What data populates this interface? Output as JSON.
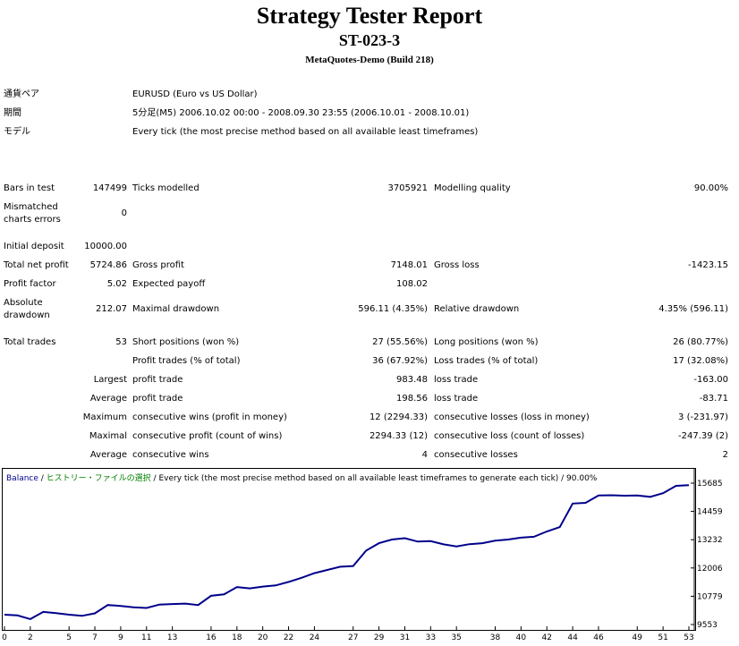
{
  "header": {
    "title": "Strategy Tester Report",
    "subtitle": "ST-023-3",
    "server": "MetaQuotes-Demo (Build 218)"
  },
  "info": {
    "pair_label": "通貨ペア",
    "pair_value": "EURUSD (Euro vs US Dollar)",
    "period_label": "期間",
    "period_value": "5分足(M5) 2006.10.02 00:00 - 2008.09.30 23:55 (2006.10.01 - 2008.10.01)",
    "model_label": "モデル",
    "model_value": "Every tick (the most precise method based on all available least timeframes)"
  },
  "stats": {
    "bars_label": "Bars in test",
    "bars_value": "147499",
    "ticks_label": "Ticks modelled",
    "ticks_value": "3705921",
    "quality_label": "Modelling quality",
    "quality_value": "90.00%",
    "mismatch_label_1": "Mismatched",
    "mismatch_label_2": "charts errors",
    "mismatch_value": "0",
    "deposit_label": "Initial deposit",
    "deposit_value": "10000.00",
    "netprofit_label": "Total net profit",
    "netprofit_value": "5724.86",
    "grossprofit_label": "Gross profit",
    "grossprofit_value": "7148.01",
    "grossloss_label": "Gross loss",
    "grossloss_value": "-1423.15",
    "pf_label": "Profit factor",
    "pf_value": "5.02",
    "ep_label": "Expected payoff",
    "ep_value": "108.02",
    "absdd_label_1": "Absolute",
    "absdd_label_2": "drawdown",
    "absdd_value": "212.07",
    "maxdd_label": "Maximal drawdown",
    "maxdd_value": "596.11 (4.35%)",
    "reldd_label": "Relative drawdown",
    "reldd_value": "4.35% (596.11)",
    "trades_label": "Total trades",
    "trades_value": "53",
    "short_label": "Short positions (won %)",
    "short_value": "27 (55.56%)",
    "long_label": "Long positions (won %)",
    "long_value": "26 (80.77%)",
    "profit_trades_label": "Profit trades (% of total)",
    "profit_trades_value": "36 (67.92%)",
    "loss_trades_label": "Loss trades (% of total)",
    "loss_trades_value": "17 (32.08%)",
    "largest_label": "Largest",
    "largest_profit_label": "profit trade",
    "largest_profit_value": "983.48",
    "largest_loss_label": "loss trade",
    "largest_loss_value": "-163.00",
    "average_label": "Average",
    "average_profit_label": "profit trade",
    "average_profit_value": "198.56",
    "average_loss_label": "loss trade",
    "average_loss_value": "-83.71",
    "maximum_label": "Maximum",
    "max_wins_label": "consecutive wins (profit in money)",
    "max_wins_value": "12 (2294.33)",
    "max_losses_label": "consecutive losses (loss in money)",
    "max_losses_value": "3 (-231.97)",
    "maximal_label": "Maximal",
    "maximal_profit_label": "consecutive profit (count of wins)",
    "maximal_profit_value": "2294.33 (12)",
    "maximal_loss_label": "consecutive loss (count of losses)",
    "maximal_loss_value": "-247.39 (2)",
    "average2_label": "Average",
    "avg_wins_label": "consecutive wins",
    "avg_wins_value": "4",
    "avg_losses_label": "consecutive losses",
    "avg_losses_value": "2"
  },
  "chart_header": {
    "balance": "Balance",
    "sep1": " / ",
    "history": "ヒストリー・ファイルの選択",
    "rest": " / Every tick (the most precise method based on all available least timeframes to generate each tick) / 90.00%"
  },
  "chart_data": {
    "type": "line",
    "title": "",
    "xlabel": "",
    "ylabel": "",
    "line_color": "#00008b",
    "x_ticks": [
      "0",
      "2",
      "5",
      "7",
      "9",
      "11",
      "13",
      "16",
      "18",
      "20",
      "22",
      "24",
      "27",
      "29",
      "31",
      "33",
      "35",
      "38",
      "40",
      "42",
      "44",
      "46",
      "49",
      "51",
      "53"
    ],
    "y_ticks": [
      "15685",
      "14459",
      "13232",
      "12006",
      "10779",
      "9553"
    ],
    "ylim": [
      9553,
      15685
    ],
    "xlim": [
      0,
      53
    ],
    "x": [
      0,
      1,
      2,
      3,
      4,
      5,
      6,
      7,
      8,
      9,
      10,
      11,
      12,
      13,
      14,
      15,
      16,
      17,
      18,
      19,
      20,
      21,
      22,
      23,
      24,
      25,
      26,
      27,
      28,
      29,
      30,
      31,
      32,
      33,
      34,
      35,
      36,
      37,
      38,
      39,
      40,
      41,
      42,
      43,
      44,
      45,
      46,
      47,
      48,
      49,
      50,
      51,
      52,
      53
    ],
    "values": [
      9980,
      9950,
      9790,
      10100,
      10050,
      9980,
      9930,
      10040,
      10400,
      10360,
      10300,
      10270,
      10420,
      10440,
      10460,
      10400,
      10800,
      10860,
      11180,
      11120,
      11200,
      11250,
      11400,
      11580,
      11780,
      11920,
      12060,
      12090,
      12760,
      13080,
      13240,
      13300,
      13150,
      13170,
      13030,
      12940,
      13040,
      13080,
      13190,
      13240,
      13320,
      13360,
      13590,
      13780,
      14800,
      14830,
      15150,
      15160,
      15140,
      15150,
      15090,
      15250,
      15570,
      15600
    ]
  }
}
